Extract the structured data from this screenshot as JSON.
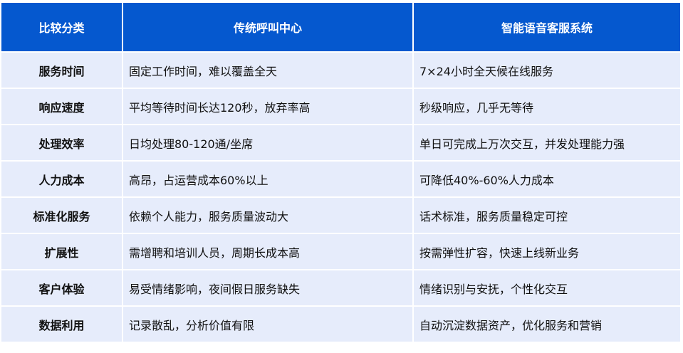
{
  "headers": [
    "比较分类",
    "传统呼叫中心",
    "智能语音客服系统"
  ],
  "rows": [
    [
      "服务时间",
      "固定工作时间，难以覆盖全天",
      "7×24小时全天候在线服务"
    ],
    [
      "响应速度",
      "平均等待时间长达120秒，放弃率高",
      "秒级响应，几乎无等待"
    ],
    [
      "处理效率",
      "日均处理80-120通/坐席",
      "单日可完成上万次交互，并发处理能力强"
    ],
    [
      "人力成本",
      "高昂，占运营成本60%以上",
      "可降低40%-60%人力成本"
    ],
    [
      "标准化服务",
      "依赖个人能力，服务质量波动大",
      "话术标准，服务质量稳定可控"
    ],
    [
      "扩展性",
      "需增聘和培训人员，周期长成本高",
      "按需弹性扩容，快速上线新业务"
    ],
    [
      "客户体验",
      "易受情绪影响，夜间假日服务缺失",
      "情绪识别与安抚，个性化交互"
    ],
    [
      "数据利用",
      "记录散乱，分析价值有限",
      "自动沉淀数据资产，优化服务和营销"
    ]
  ],
  "colors": {
    "header_bg": "#0558cf",
    "row_bg": "#e6ecfb"
  }
}
